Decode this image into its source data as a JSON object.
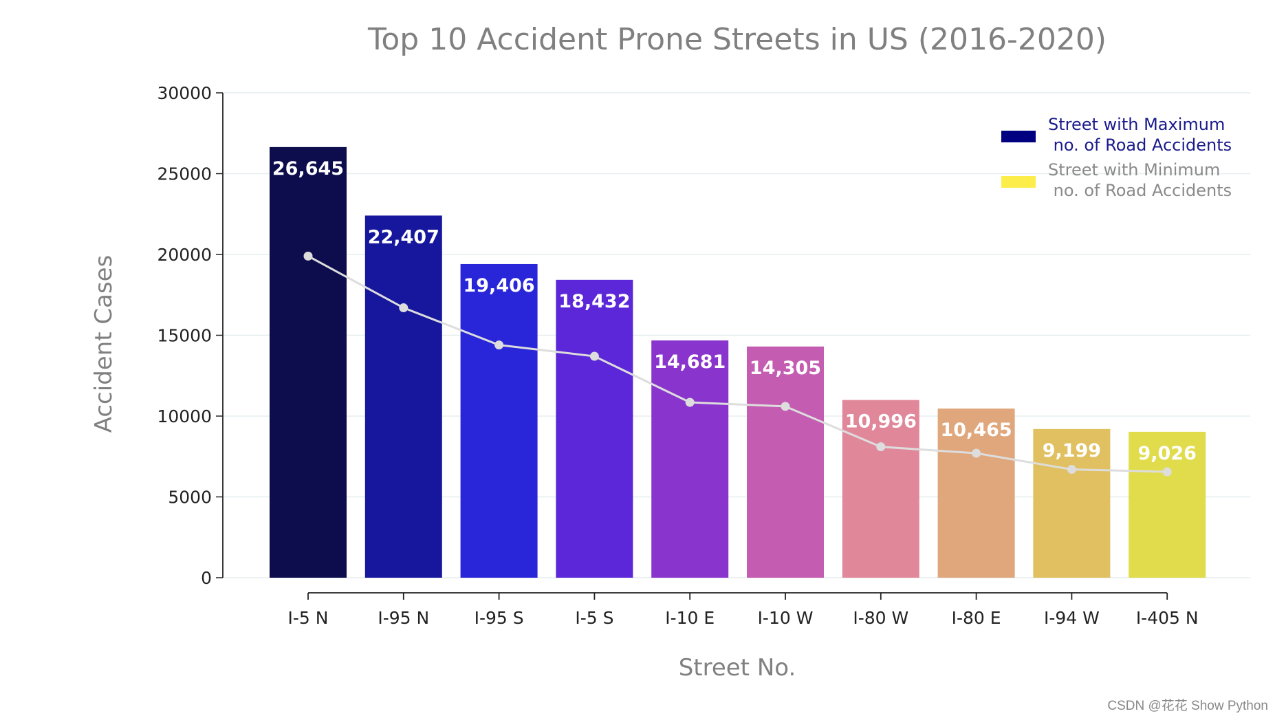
{
  "chart_data": {
    "type": "bar",
    "title": "Top 10 Accident Prone Streets in US (2016-2020)",
    "xlabel": "Street No.",
    "ylabel": "Accident Cases",
    "ylim": [
      0,
      30000
    ],
    "yticks": [
      0,
      5000,
      10000,
      15000,
      20000,
      25000,
      30000
    ],
    "grid": "horizontal",
    "categories": [
      "I-5 N",
      "I-95 N",
      "I-95 S",
      "I-5 S",
      "I-10 E",
      "I-10 W",
      "I-80 W",
      "I-80 E",
      "I-94 W",
      "I-405 N"
    ],
    "values": [
      26645,
      22407,
      19406,
      18432,
      14681,
      14305,
      10996,
      10465,
      9199,
      9026
    ],
    "value_labels": [
      "26,645",
      "22,407",
      "19,406",
      "18,432",
      "14,681",
      "14,305",
      "10,996",
      "10,465",
      "9,199",
      "9,026"
    ],
    "bar_colors": [
      "#0d0d4d",
      "#17179e",
      "#2826d8",
      "#5c27d8",
      "#8934cc",
      "#c45cb2",
      "#e0889a",
      "#e0a77c",
      "#e0c060",
      "#e0dc4c"
    ],
    "line_series": {
      "name": "trend",
      "color": "#dddddd",
      "values": [
        19900,
        16700,
        14400,
        13700,
        10850,
        10600,
        8100,
        7700,
        6700,
        6550
      ]
    },
    "legend": {
      "position": "top-right",
      "entries": [
        {
          "label": "Street with Maximum\n no. of Road Accidents",
          "color": "#000080",
          "text_color": "#1a1a8c"
        },
        {
          "label": "Street with Minimum\n no. of Road Accidents",
          "color": "#fced4b",
          "text_color": "#8a8a8a"
        }
      ]
    }
  },
  "watermark": "CSDN @花花 Show Python"
}
